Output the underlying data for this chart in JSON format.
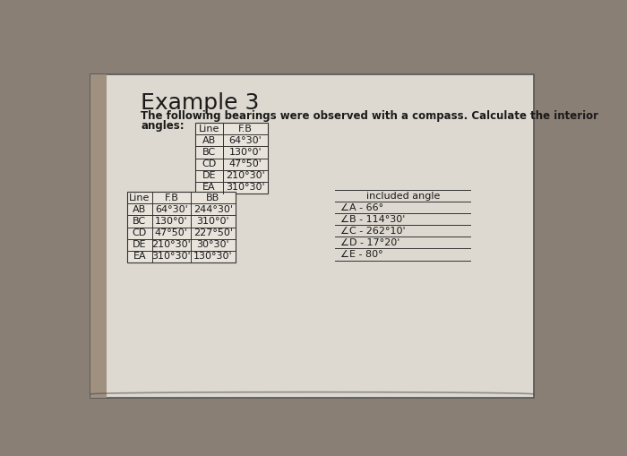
{
  "title": "Example 3",
  "desc_line1": "The following bearings were observed with a compass. Calculate the interior",
  "desc_line2": "angles:",
  "table1_headers": [
    "Line",
    "F.B"
  ],
  "table1_rows": [
    [
      "AB",
      "64°30'"
    ],
    [
      "BC",
      "130°0'"
    ],
    [
      "CD",
      "47°50'"
    ],
    [
      "DE",
      "210°30'"
    ],
    [
      "EA",
      "310°30'"
    ]
  ],
  "table2_headers": [
    "Line",
    "F.B",
    "BB"
  ],
  "table2_rows": [
    [
      "AB",
      "64°30'",
      "244°30'"
    ],
    [
      "BC",
      "130°0'",
      "310°0'"
    ],
    [
      "CD",
      "47°50'",
      "227°50'"
    ],
    [
      "DE",
      "210°30'",
      "30°30'"
    ],
    [
      "EA",
      "310°30'",
      "130°30'"
    ]
  ],
  "table3_header": "included angle",
  "table3_rows": [
    "∠A - 66°",
    "∠B - 114°30'",
    "∠C - 262°10'",
    "∠D - 17°20'",
    "∠E - 80°"
  ],
  "bg_color": "#8a7f74",
  "paper_color": "#ddd9d0",
  "paper_border": "#555555",
  "text_color": "#1a1a1a",
  "title_fontsize": 18,
  "body_fontsize": 8.5,
  "table_fontsize": 8.0
}
